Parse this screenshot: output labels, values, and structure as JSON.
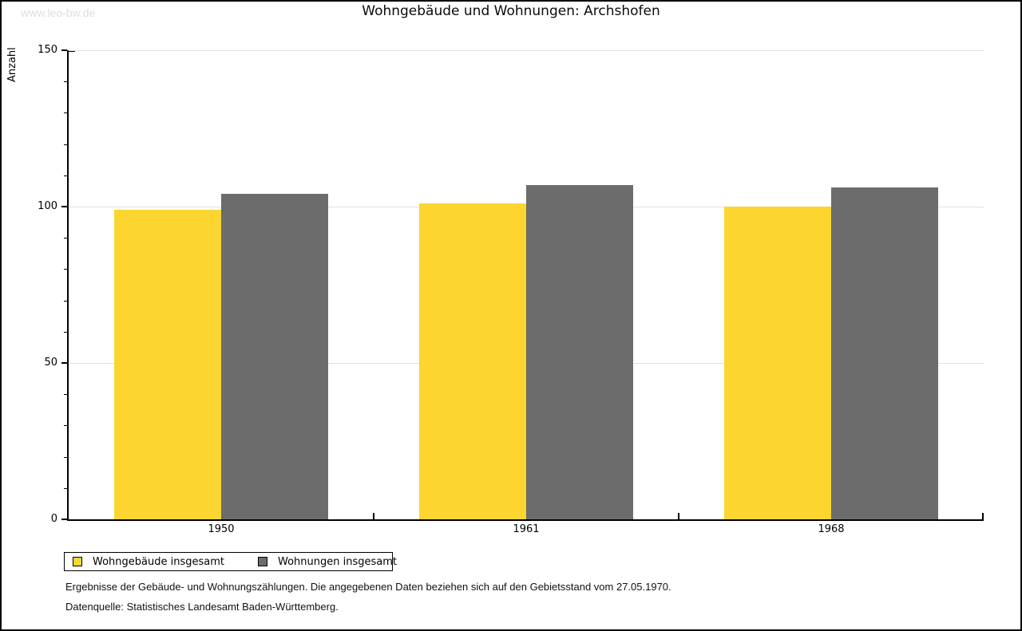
{
  "watermark": "www.leo-bw.de",
  "title": "Wohngebäude und Wohnungen: Archshofen",
  "chart_data": {
    "type": "bar",
    "title": "Wohngebäude und Wohnungen: Archshofen",
    "xlabel": "",
    "ylabel": "Anzahl",
    "categories": [
      "1950",
      "1961",
      "1968"
    ],
    "series": [
      {
        "name": "Wohngebäude insgesamt",
        "color": "#FCD530",
        "values": [
          99,
          101,
          100
        ]
      },
      {
        "name": "Wohnungen insgesamt",
        "color": "#6C6C6C",
        "values": [
          104,
          107,
          106
        ]
      }
    ],
    "ylim": [
      0,
      150
    ],
    "y_major_ticks": [
      0,
      50,
      100,
      150
    ],
    "y_minor_step": 10,
    "grid": "horizontal-major-only",
    "gridline_color": "#E0E0E0",
    "legend_position": "bottom-left"
  },
  "footer": {
    "line1": "Ergebnisse der Gebäude- und Wohnungszählungen. Die angegebenen Daten beziehen sich auf den Gebietsstand vom 27.05.1970.",
    "line2": "Datenquelle: Statistisches Landesamt Baden-Württemberg."
  }
}
